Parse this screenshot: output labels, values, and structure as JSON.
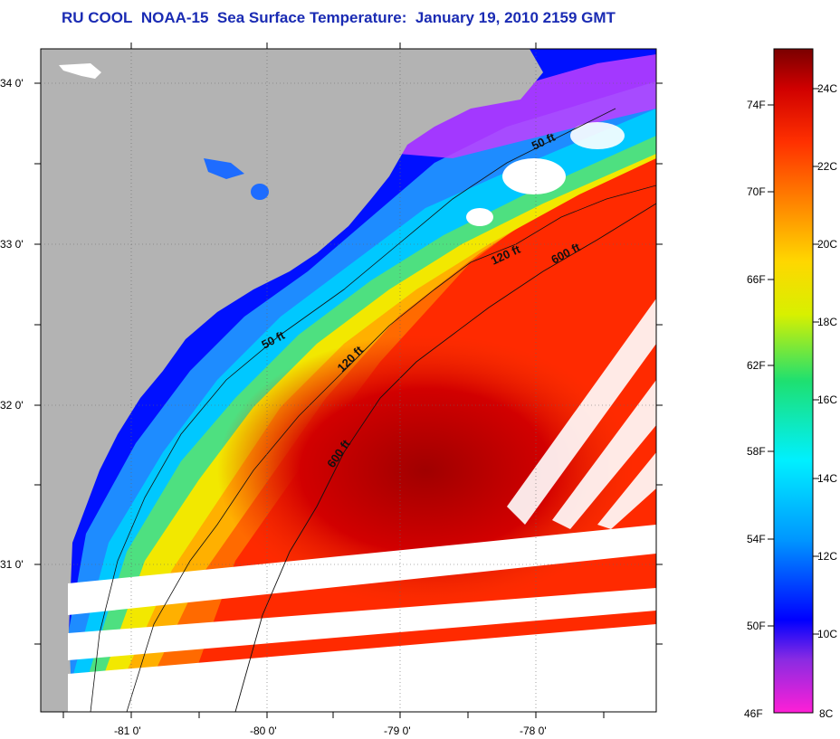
{
  "header": {
    "title_org": "RU COOL",
    "title_sat": "NOAA-15",
    "title_product": "Sea Surface Temperature:",
    "title_date": "January 19, 2010 2159 GMT"
  },
  "map": {
    "lat_labels": [
      "34 0'",
      "33 0'",
      "32 0'",
      "31 0'"
    ],
    "lon_labels": [
      "-81 0'",
      "-80 0'",
      "-79 0'",
      "-78 0'"
    ],
    "contour_labels": [
      "50 ft",
      "50 ft",
      "120 ft",
      "120 ft",
      "600 ft",
      "600 ft"
    ],
    "colors": {
      "land": "#b3b3b3",
      "cloud": "#ffffff"
    }
  },
  "colorbar": {
    "fahrenheit": [
      "74F",
      "70F",
      "66F",
      "62F",
      "58F",
      "54F",
      "50F",
      "46F"
    ],
    "celsius": [
      "24C",
      "22C",
      "20C",
      "18C",
      "16C",
      "14C",
      "12C",
      "10C",
      "8C"
    ],
    "stops": [
      "#ff1fd6",
      "#8a2be2",
      "#0000ff",
      "#0096ff",
      "#00f0ff",
      "#1ee070",
      "#d8f000",
      "#ffd700",
      "#ff8c00",
      "#ff3000",
      "#d00000",
      "#7a0000"
    ]
  }
}
